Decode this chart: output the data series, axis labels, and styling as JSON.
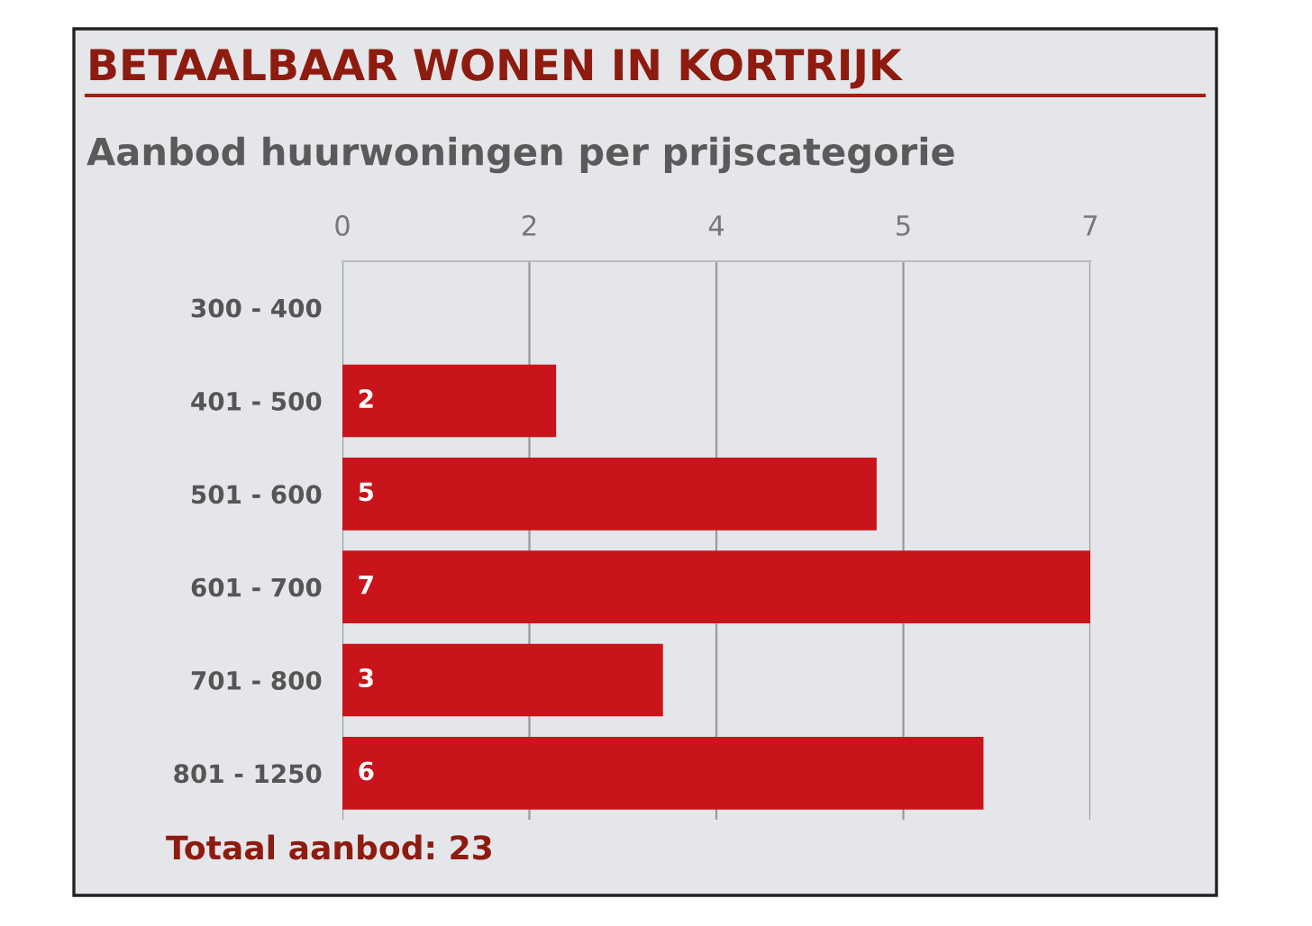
{
  "chart_data": {
    "type": "bar",
    "orientation": "horizontal",
    "title": "BETAALBAAR WONEN IN KORTRIJK",
    "subtitle": "Aanbod huurwoningen per prijscategorie",
    "categories": [
      "300 - 400",
      "401 - 500",
      "501 - 600",
      "601 - 700",
      "701 - 800",
      "801 - 1250"
    ],
    "values": [
      0,
      2,
      5,
      7,
      3,
      6
    ],
    "value_labels": [
      null,
      "2",
      "5",
      "7",
      "3",
      "6"
    ],
    "color": "#c8141a",
    "xlim": [
      0,
      7
    ],
    "xticks": [
      0,
      {
        "value": 1.75,
        "label": "2"
      },
      {
        "value": 3.5,
        "label": "4"
      },
      {
        "value": 5.25,
        "label": "5"
      },
      7
    ],
    "grid": "x",
    "annotations": [
      "Totaal aanbod: 23"
    ]
  }
}
